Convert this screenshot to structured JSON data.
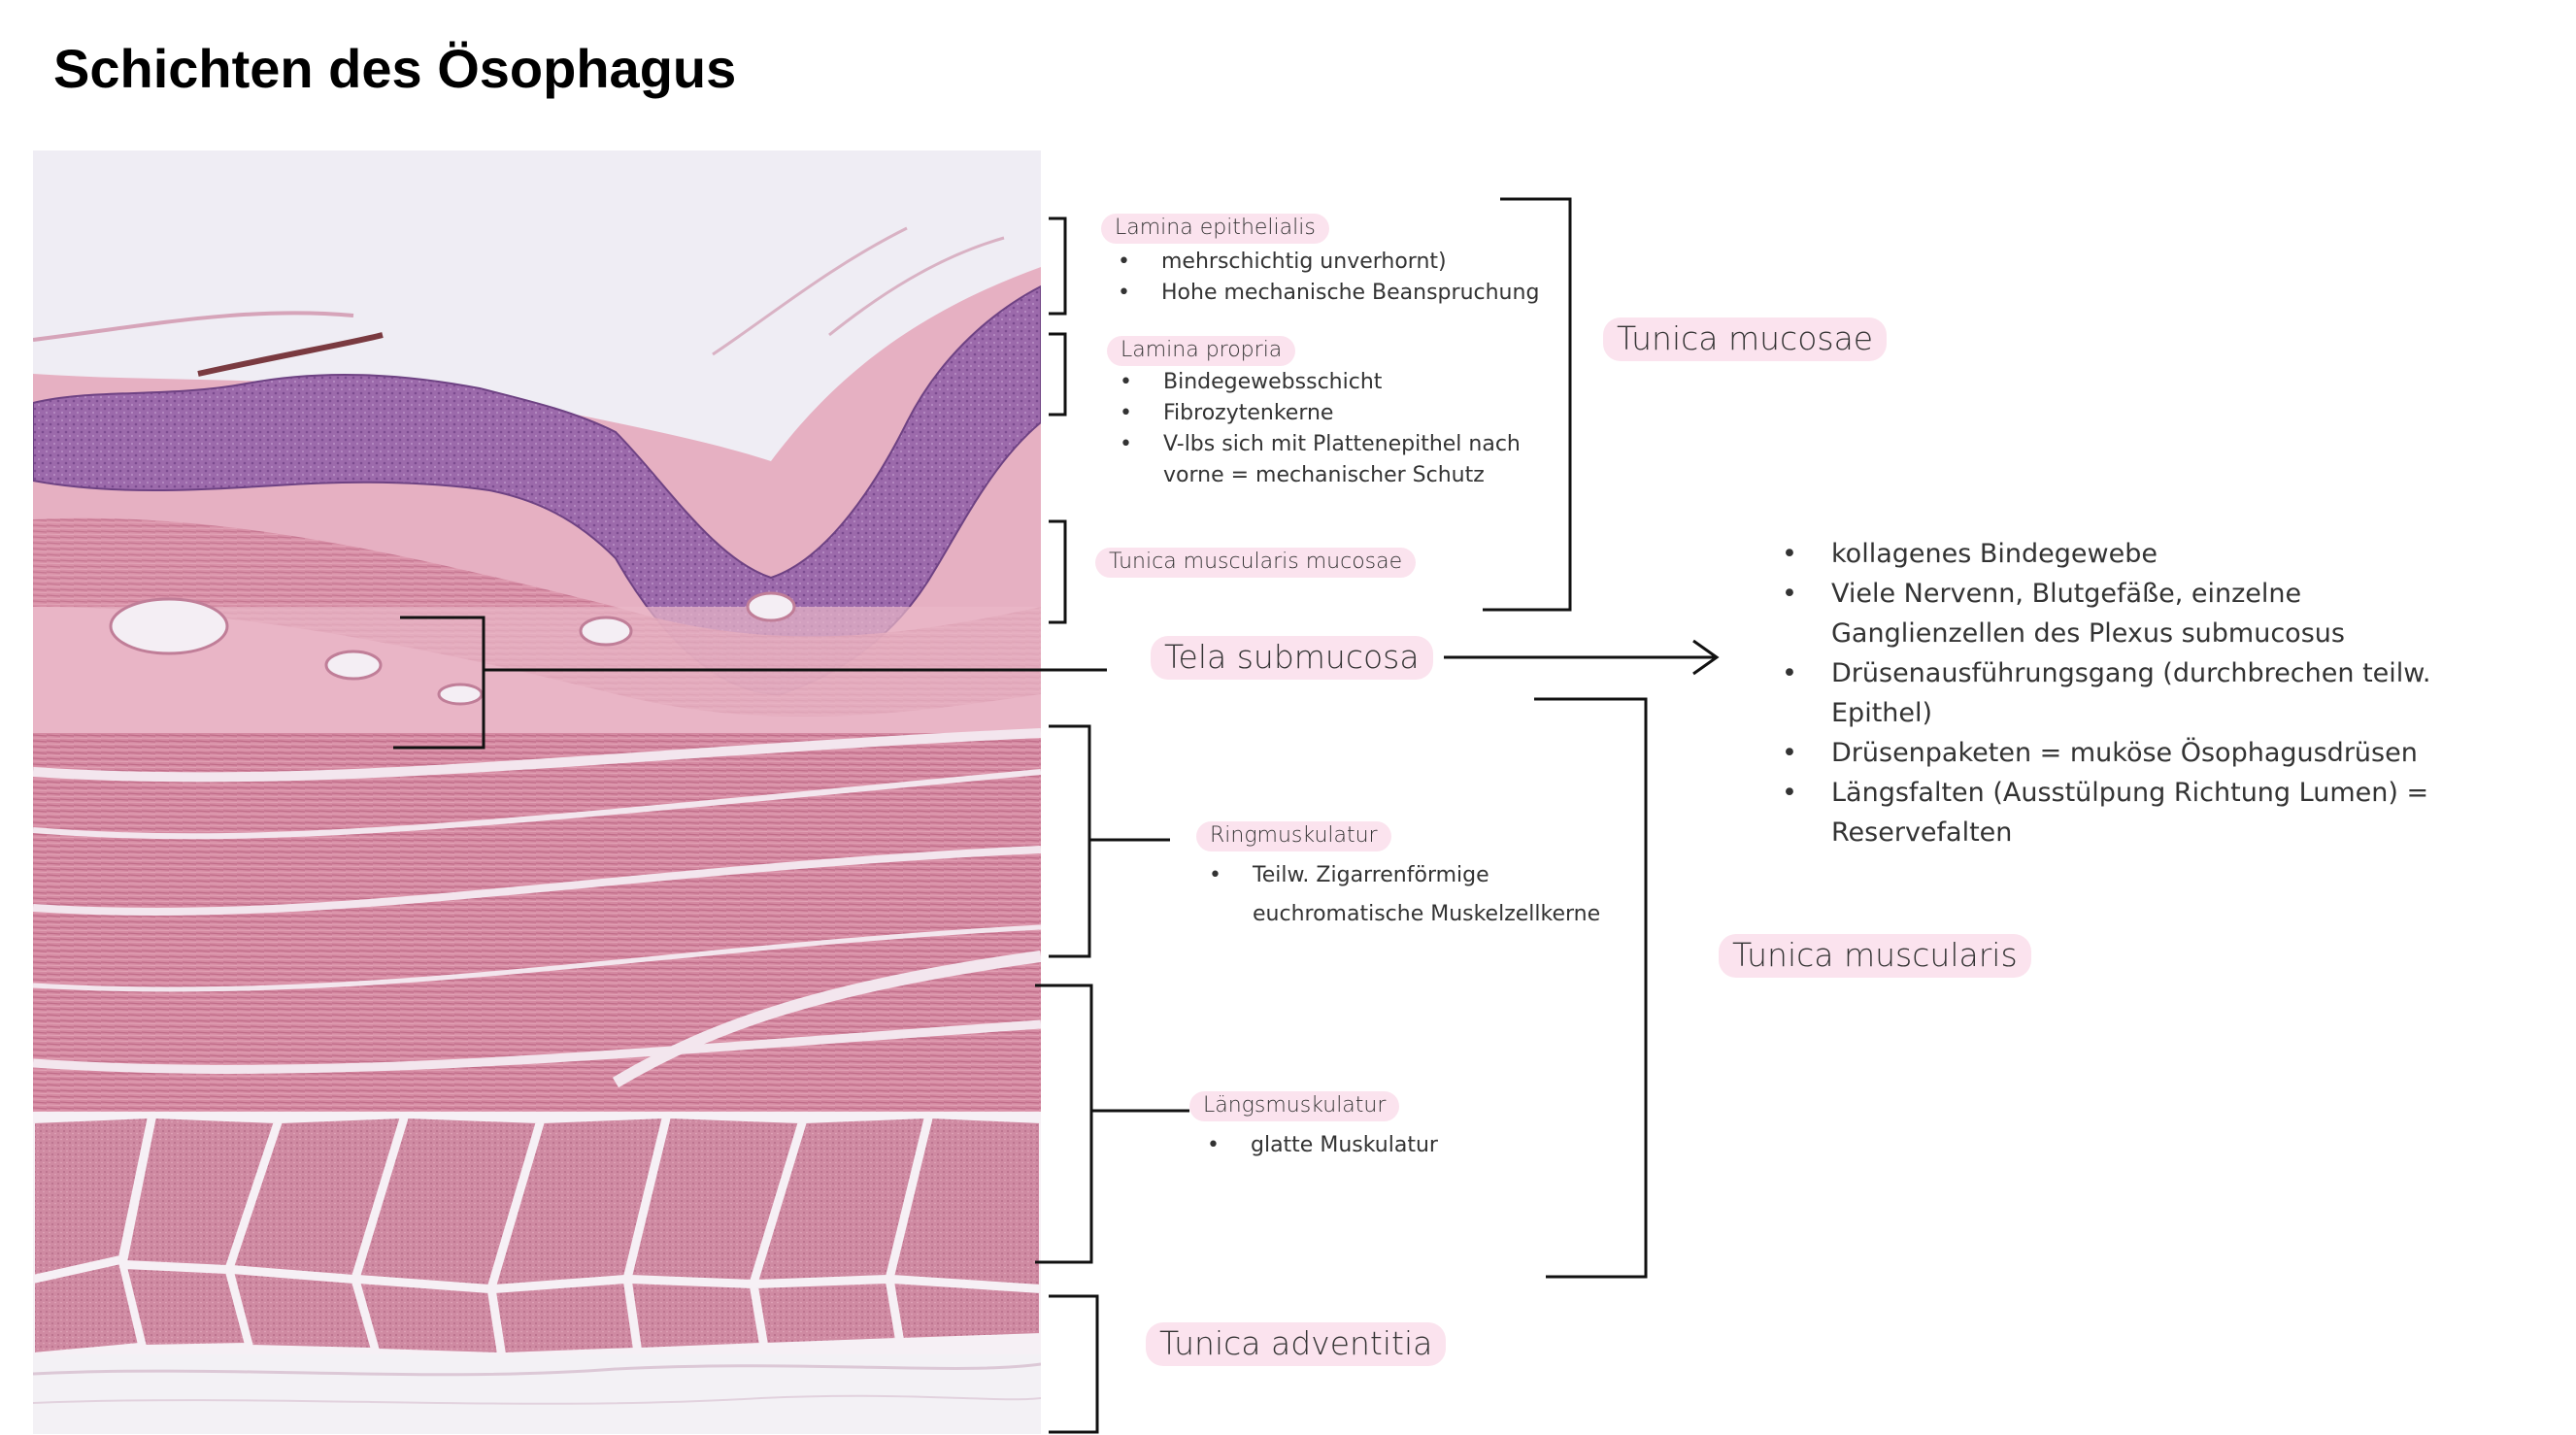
{
  "title": "Schichten des Ösophagus",
  "layers": {
    "lamina_epithelialis": {
      "label": "Lamina epithelialis",
      "points": [
        "mehrschichtig unverhornt)",
        "Hohe mechanische Beanspruchung"
      ]
    },
    "lamina_propria": {
      "label": "Lamina propria",
      "points": [
        "Bindegewebsschicht",
        "Fibrozytenkerne",
        "V-lbs sich mit Plattenepithel nach vorne = mechanischer Schutz"
      ]
    },
    "tunica_muscularis_mucosae": {
      "label": "Tunica muscularis mucosae"
    },
    "tunica_mucosae": {
      "label": "Tunica mucosae"
    },
    "tela_submucosa": {
      "label": "Tela submucosa",
      "points": [
        "kollagenes Bindegewebe",
        "Viele Nervenn, Blutgefäße, einzelne Ganglienzellen des Plexus submucosus",
        "Drüsenausführungsgang (durchbrechen teilw. Epithel)",
        "Drüsenpaketen = muköse Ösophagusdrüsen",
        "Längsfalten (Ausstülpung Richtung Lumen) = Reservefalten"
      ]
    },
    "ringmuskulatur": {
      "label": "Ringmuskulatur",
      "points": [
        "Teilw. Zigarrenförmige euchromatische Muskelzellkerne"
      ]
    },
    "laengsmuskulatur": {
      "label": "Längsmuskulatur",
      "points": [
        "glatte Muskulatur"
      ]
    },
    "tunica_muscularis": {
      "label": "Tunica muscularis"
    },
    "tunica_adventitia": {
      "label": "Tunica adventitia"
    }
  },
  "colors": {
    "highlight": "#fbe3ee",
    "stain_dark": "#8d5a9e",
    "stain_muscle": "#cf7f98",
    "stain_light": "#eab8c8"
  }
}
